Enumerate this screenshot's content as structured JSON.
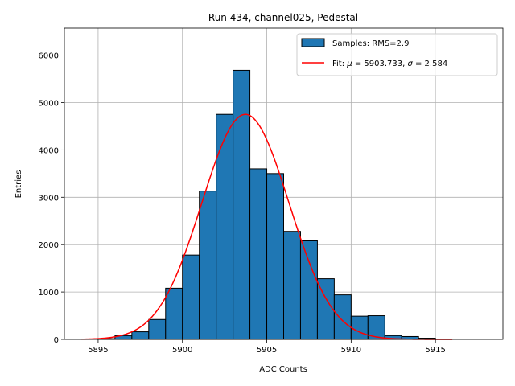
{
  "chart_data": {
    "type": "bar",
    "title": "Run 434, channel025, Pedestal",
    "xlabel": "ADC Counts",
    "ylabel": "Entries",
    "xlim": [
      5893,
      5919
    ],
    "ylim": [
      0,
      6570
    ],
    "x_ticks": [
      5895,
      5900,
      5905,
      5910,
      5915
    ],
    "y_ticks": [
      0,
      1000,
      2000,
      3000,
      4000,
      5000,
      6000
    ],
    "grid": true,
    "legend_position": "top-right",
    "bin_width": 1,
    "bins": [
      {
        "x": 5895,
        "count": 15
      },
      {
        "x": 5896,
        "count": 80
      },
      {
        "x": 5897,
        "count": 160
      },
      {
        "x": 5898,
        "count": 420
      },
      {
        "x": 5899,
        "count": 1080
      },
      {
        "x": 5900,
        "count": 1780
      },
      {
        "x": 5901,
        "count": 3130
      },
      {
        "x": 5902,
        "count": 4750
      },
      {
        "x": 5903,
        "count": 5680
      },
      {
        "x": 5904,
        "count": 3600
      },
      {
        "x": 5905,
        "count": 3500
      },
      {
        "x": 5906,
        "count": 2280
      },
      {
        "x": 5907,
        "count": 2080
      },
      {
        "x": 5908,
        "count": 1280
      },
      {
        "x": 5909,
        "count": 940
      },
      {
        "x": 5910,
        "count": 490
      },
      {
        "x": 5911,
        "count": 500
      },
      {
        "x": 5912,
        "count": 80
      },
      {
        "x": 5913,
        "count": 60
      },
      {
        "x": 5914,
        "count": 25
      }
    ],
    "fit": {
      "mu": 5903.733,
      "sigma": 2.584,
      "amplitude": 4750,
      "x_range": [
        5894,
        5916
      ]
    },
    "series": [
      {
        "name": "Samples: RMS=2.9",
        "kind": "histogram",
        "color": "#1f77b4"
      },
      {
        "name_prefix": "Fit: ",
        "mu_symbol": "μ",
        "mu_text": " = 5903.733, ",
        "sigma_symbol": "σ",
        "sigma_text": " = 2.584",
        "kind": "line",
        "color": "#ff0000"
      }
    ]
  }
}
